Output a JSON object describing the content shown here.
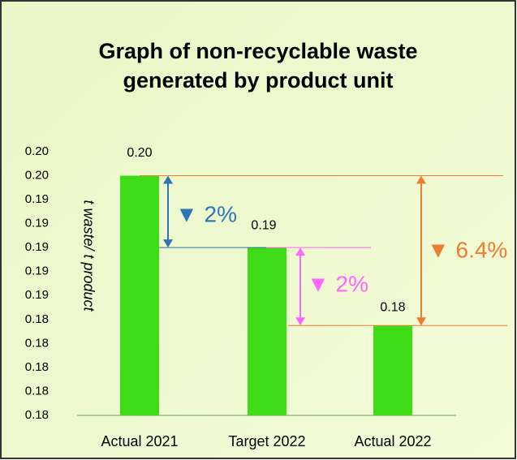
{
  "chart_data": {
    "type": "bar",
    "title": [
      "Graph of non-recyclable waste",
      "generated by product unit"
    ],
    "y_label": "t waste/ t product",
    "categories": [
      "Actual 2021",
      "Target  2022",
      "Actual 2022"
    ],
    "values": [
      0.196,
      0.19,
      0.1835
    ],
    "value_labels": [
      "0.20",
      "0.19",
      "0.18"
    ],
    "color": "#3ddc16",
    "ylim": [
      0.176,
      0.198
    ],
    "yticks": [
      {
        "value": 0.176,
        "label": "0.18"
      },
      {
        "value": 0.178,
        "label": "0.18"
      },
      {
        "value": 0.18,
        "label": "0.18"
      },
      {
        "value": 0.182,
        "label": "0.18"
      },
      {
        "value": 0.184,
        "label": "0.18"
      },
      {
        "value": 0.186,
        "label": "0.19"
      },
      {
        "value": 0.188,
        "label": "0.19"
      },
      {
        "value": 0.19,
        "label": "0.19"
      },
      {
        "value": 0.192,
        "label": "0.19"
      },
      {
        "value": 0.194,
        "label": "0.19"
      },
      {
        "value": 0.196,
        "label": "0.20"
      },
      {
        "value": 0.198,
        "label": "0.20"
      }
    ],
    "annotations": [
      {
        "text": "▼ 2%",
        "color": "#2e75b6"
      },
      {
        "text": "▼ 2%",
        "color": "#ff66ff"
      },
      {
        "text": "▼ 6.4%",
        "color": "#ed7d31"
      }
    ]
  }
}
